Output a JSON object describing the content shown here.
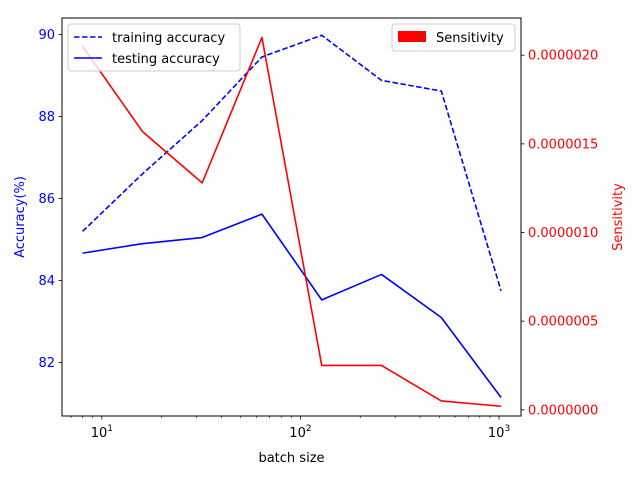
{
  "chart_data": {
    "type": "line",
    "xlabel": "batch size",
    "xscale": "log",
    "xlim": [
      6.3,
      1290
    ],
    "x_major_ticks": [
      {
        "value": 10,
        "base": "10",
        "exp": "1"
      },
      {
        "value": 100,
        "base": "10",
        "exp": "2"
      },
      {
        "value": 1000,
        "base": "10",
        "exp": "3"
      }
    ],
    "x": [
      8,
      16,
      32,
      64,
      128,
      256,
      512,
      1024
    ],
    "left_axis": {
      "label": "Accuracy(%)",
      "color": "#0000ff",
      "ylim": [
        80.7,
        90.4
      ],
      "ticks": [
        82,
        84,
        86,
        88,
        90
      ]
    },
    "right_axis": {
      "label": "Sensitivity",
      "color": "#ff0000",
      "ylim": [
        -3.5e-08,
        2.21e-06
      ],
      "ticks": [
        0.0,
        5e-07,
        1e-06,
        1.5e-06,
        2e-06
      ],
      "tick_labels": [
        "0.0000000",
        "0.0000005",
        "0.0000010",
        "0.0000015",
        "0.0000020"
      ]
    },
    "series": [
      {
        "name": "training accuracy",
        "axis": "left",
        "color": "#0000ff",
        "dash": true,
        "values": [
          85.2,
          86.6,
          87.9,
          89.45,
          89.98,
          88.88,
          88.62,
          83.75
        ]
      },
      {
        "name": "testing accuracy",
        "axis": "left",
        "color": "#0000ff",
        "dash": false,
        "values": [
          84.67,
          84.9,
          85.05,
          85.62,
          83.53,
          84.15,
          83.1,
          81.15
        ]
      },
      {
        "name": "Sensitivity",
        "axis": "right",
        "color": "#ff0000",
        "dash": false,
        "values": [
          2.05e-06,
          1.57e-06,
          1.28e-06,
          2.1e-06,
          2.5e-07,
          2.5e-07,
          5e-08,
          2e-08
        ]
      }
    ],
    "legend_left": {
      "placement": "top-left",
      "entries": [
        "training accuracy",
        "testing accuracy"
      ]
    },
    "legend_right": {
      "placement": "top-right",
      "entries": [
        "Sensitivity"
      ]
    },
    "grid": false
  }
}
